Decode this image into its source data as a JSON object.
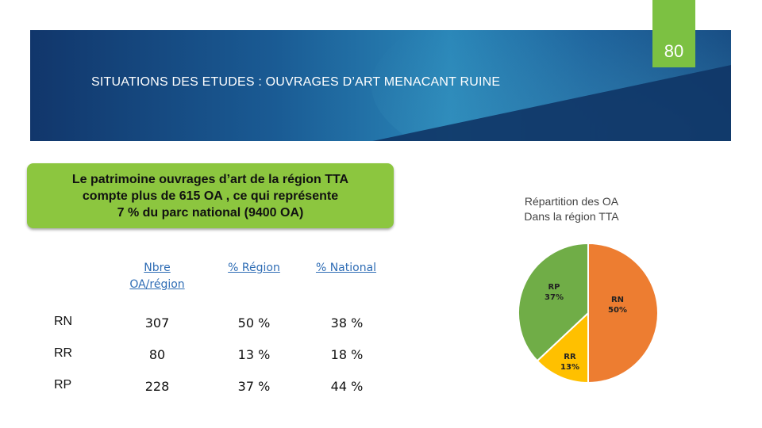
{
  "slide": {
    "page_number": "80",
    "title": "SITUATIONS DES ETUDES : OUVRAGES D’ART MENACANT RUINE",
    "callout_line1": "Le patrimoine ouvrages d’art de la région TTA",
    "callout_line2": "compte plus de  615 OA , ce qui représente",
    "callout_line3": "7 % du parc national (9400 OA)"
  },
  "colors": {
    "banner": "#1a5b94",
    "accent_green": "#7cc142",
    "rn": "#ed7d31",
    "rr": "#ffc000",
    "rp": "#70ad47"
  },
  "table": {
    "headers": [
      "Nbre OA/région",
      "% Région",
      "% National"
    ],
    "header_nbre_line1": "Nbre",
    "header_nbre_line2": "OA/région",
    "rows": [
      {
        "label": "RN",
        "nbre": "307",
        "region": "50 %",
        "national": "38 %"
      },
      {
        "label": "RR",
        "nbre": "80",
        "region": "13 %",
        "national": "18 %"
      },
      {
        "label": "RP",
        "nbre": "228",
        "region": "37 %",
        "national": "44 %"
      }
    ]
  },
  "chart_data": {
    "type": "pie",
    "title_line1": "Répartition des OA",
    "title_line2": "Dans la région TTA",
    "slices": [
      {
        "name": "RN",
        "label": "50%",
        "value": 50,
        "color": "#ed7d31"
      },
      {
        "name": "RR",
        "label": "13%",
        "value": 13,
        "color": "#ffc000"
      },
      {
        "name": "RP",
        "label": "37%",
        "value": 37,
        "color": "#70ad47"
      }
    ]
  }
}
